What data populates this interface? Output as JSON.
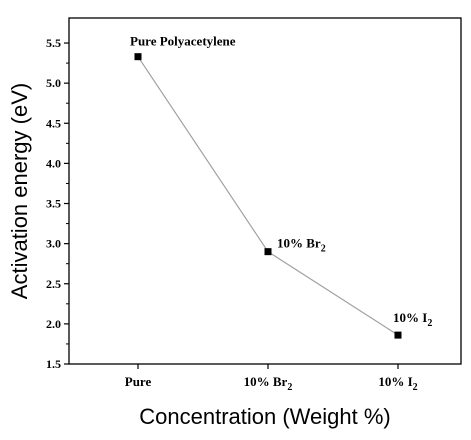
{
  "chart_data": {
    "type": "line",
    "categories": [
      "Pure",
      "10% Br2",
      "10% I2"
    ],
    "category_labels": [
      {
        "base": "Pure",
        "sub": ""
      },
      {
        "base": "10% Br",
        "sub": "2"
      },
      {
        "base": "10% I",
        "sub": "2"
      }
    ],
    "series": [
      {
        "values": [
          5.33,
          2.9,
          1.86
        ]
      }
    ],
    "annotations": [
      {
        "base": "Pure Polyacetylene",
        "sub": "",
        "index": 0
      },
      {
        "base": "10% Br",
        "sub": "2",
        "index": 1
      },
      {
        "base": "10% I",
        "sub": "2",
        "index": 2
      }
    ],
    "xlabel": "Concentration (Weight %)",
    "ylabel": "Activation energy (eV)",
    "ylim": [
      1.5,
      5.6
    ],
    "yticks": [
      1.5,
      2.0,
      2.5,
      3.0,
      3.5,
      4.0,
      4.5,
      5.0,
      5.5
    ],
    "grid": false,
    "line_color": "#a0a0a0",
    "marker_color": "#000000"
  }
}
